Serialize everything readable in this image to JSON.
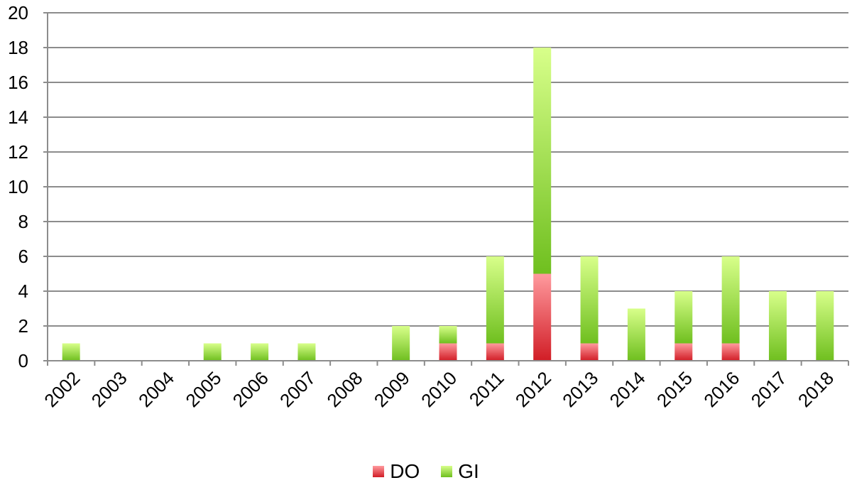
{
  "chart_data": {
    "type": "bar",
    "stacked": true,
    "title": "",
    "xlabel": "",
    "ylabel": "",
    "categories": [
      "2002",
      "2003",
      "2004",
      "2005",
      "2006",
      "2007",
      "2008",
      "2009",
      "2010",
      "2011",
      "2012",
      "2013",
      "2014",
      "2015",
      "2016",
      "2017",
      "2018"
    ],
    "series": [
      {
        "name": "DO",
        "color": "#e8333a",
        "values": [
          0,
          0,
          0,
          0,
          0,
          0,
          0,
          0,
          1,
          1,
          5,
          1,
          0,
          1,
          1,
          0,
          0
        ]
      },
      {
        "name": "GI",
        "color": "#8fd42a",
        "values": [
          1,
          0,
          0,
          1,
          1,
          1,
          0,
          2,
          1,
          5,
          13,
          5,
          3,
          3,
          5,
          4,
          4
        ]
      }
    ],
    "ylim": [
      0,
      20
    ],
    "yticks": [
      0,
      2,
      4,
      6,
      8,
      10,
      12,
      14,
      16,
      18,
      20
    ],
    "grid": true,
    "legend_position": "bottom"
  }
}
